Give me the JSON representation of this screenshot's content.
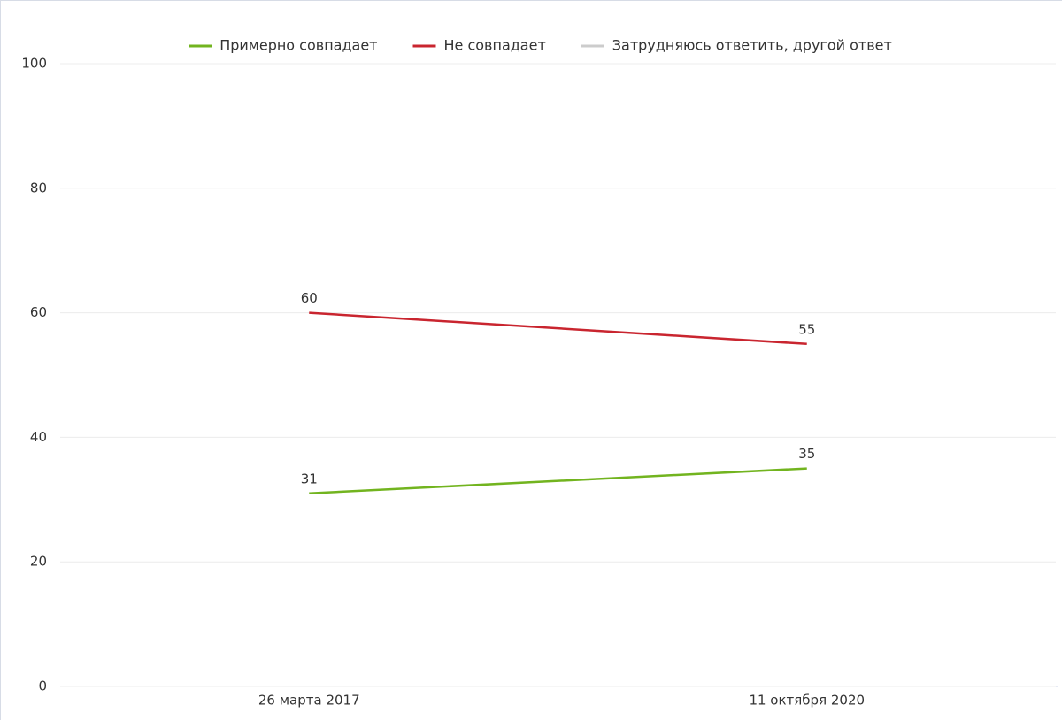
{
  "chart_data": {
    "type": "line",
    "categories": [
      "26 марта 2017",
      "11 октября 2020"
    ],
    "series": [
      {
        "name": "Примерно совпадает",
        "color": "#72b41f",
        "values": [
          31,
          35
        ]
      },
      {
        "name": "Не совпадает",
        "color": "#c9252f",
        "values": [
          60,
          55
        ]
      },
      {
        "name": "Затрудняюсь ответить, другой ответ",
        "color": "#cccccc",
        "values": [
          null,
          null
        ]
      }
    ],
    "ylim": [
      0,
      100
    ],
    "yticks": [
      0,
      20,
      40,
      60,
      80,
      100
    ],
    "grid": true,
    "legend": "top"
  }
}
